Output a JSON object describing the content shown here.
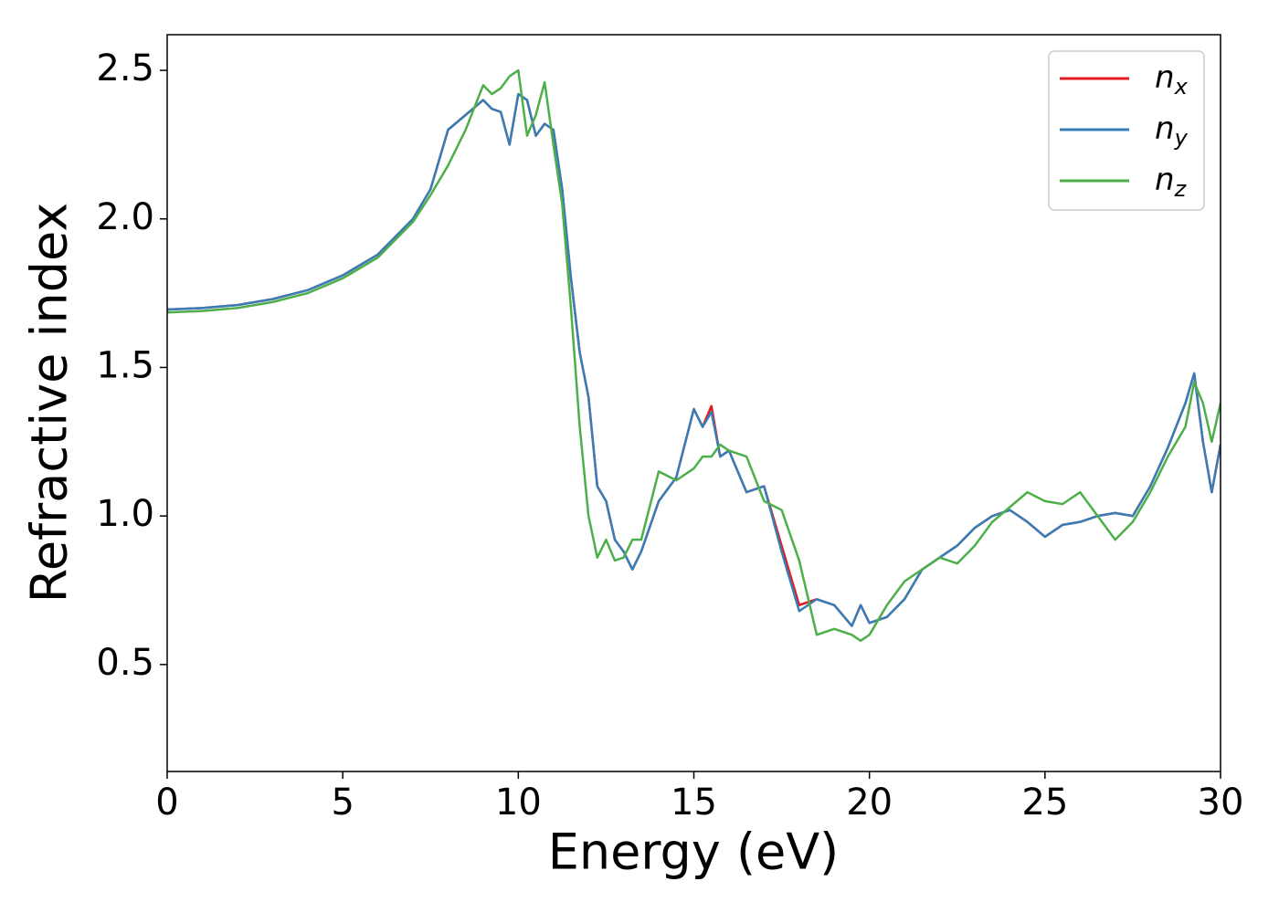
{
  "chart_data": {
    "type": "line",
    "xlabel": "Energy (eV)",
    "ylabel": "Refractive index",
    "x": [
      0,
      1,
      2,
      3,
      4,
      5,
      6,
      7,
      7.5,
      8,
      8.5,
      9,
      9.25,
      9.5,
      9.75,
      10,
      10.25,
      10.5,
      10.75,
      11,
      11.25,
      11.5,
      11.75,
      12,
      12.25,
      12.5,
      12.75,
      13,
      13.25,
      13.5,
      14,
      14.5,
      15,
      15.25,
      15.5,
      15.75,
      16,
      16.5,
      17,
      17.5,
      18,
      18.5,
      19,
      19.5,
      19.75,
      20,
      20.5,
      21,
      21.5,
      22,
      22.5,
      23,
      23.5,
      24,
      24.5,
      25,
      25.5,
      26,
      26.5,
      27,
      27.5,
      28,
      28.5,
      29,
      29.25,
      29.5,
      29.75,
      30
    ],
    "series": [
      {
        "name": "nx",
        "color": "#e41a1c",
        "values": [
          1.695,
          1.7,
          1.71,
          1.73,
          1.76,
          1.81,
          1.88,
          2.0,
          2.1,
          2.3,
          2.35,
          2.4,
          2.37,
          2.36,
          2.25,
          2.42,
          2.4,
          2.28,
          2.32,
          2.3,
          2.1,
          1.8,
          1.55,
          1.4,
          1.1,
          1.05,
          0.92,
          0.88,
          0.82,
          0.88,
          1.05,
          1.13,
          1.36,
          1.3,
          1.37,
          1.2,
          1.22,
          1.08,
          1.1,
          0.9,
          0.7,
          0.72,
          0.7,
          0.63,
          0.7,
          0.64,
          0.66,
          0.72,
          0.82,
          0.86,
          0.9,
          0.96,
          1.0,
          1.02,
          0.98,
          0.93,
          0.97,
          0.98,
          1.0,
          1.01,
          1.0,
          1.1,
          1.23,
          1.38,
          1.48,
          1.25,
          1.08,
          1.24
        ]
      },
      {
        "name": "ny",
        "color": "#377eb8",
        "values": [
          1.695,
          1.7,
          1.71,
          1.73,
          1.76,
          1.81,
          1.88,
          2.0,
          2.1,
          2.3,
          2.35,
          2.4,
          2.37,
          2.36,
          2.25,
          2.42,
          2.4,
          2.28,
          2.32,
          2.3,
          2.1,
          1.8,
          1.55,
          1.4,
          1.1,
          1.05,
          0.92,
          0.88,
          0.82,
          0.88,
          1.05,
          1.13,
          1.36,
          1.3,
          1.35,
          1.2,
          1.22,
          1.08,
          1.1,
          0.88,
          0.68,
          0.72,
          0.7,
          0.63,
          0.7,
          0.64,
          0.66,
          0.72,
          0.82,
          0.86,
          0.9,
          0.96,
          1.0,
          1.02,
          0.98,
          0.93,
          0.97,
          0.98,
          1.0,
          1.01,
          1.0,
          1.1,
          1.23,
          1.38,
          1.48,
          1.25,
          1.08,
          1.24
        ]
      },
      {
        "name": "nz",
        "color": "#4daf4a",
        "values": [
          1.685,
          1.69,
          1.7,
          1.72,
          1.75,
          1.8,
          1.87,
          1.99,
          2.08,
          2.18,
          2.3,
          2.45,
          2.42,
          2.44,
          2.48,
          2.5,
          2.28,
          2.35,
          2.46,
          2.25,
          2.05,
          1.7,
          1.3,
          1.0,
          0.86,
          0.92,
          0.85,
          0.86,
          0.92,
          0.92,
          1.15,
          1.12,
          1.16,
          1.2,
          1.2,
          1.24,
          1.22,
          1.2,
          1.05,
          1.02,
          0.85,
          0.6,
          0.62,
          0.6,
          0.58,
          0.6,
          0.7,
          0.78,
          0.82,
          0.86,
          0.84,
          0.9,
          0.98,
          1.03,
          1.08,
          1.05,
          1.04,
          1.08,
          1.0,
          0.92,
          0.98,
          1.08,
          1.2,
          1.3,
          1.45,
          1.38,
          1.25,
          1.38
        ]
      }
    ],
    "xlim": [
      0,
      30
    ],
    "xticks": [
      0,
      5,
      10,
      15,
      20,
      25,
      30
    ],
    "ylim": [
      0.14,
      2.62
    ],
    "yticks": [
      0.5,
      {
        "value": 1,
        "label": "1.0"
      },
      1.5,
      {
        "value": 2,
        "label": "2.0"
      },
      2.5
    ],
    "legend": "upper right"
  }
}
